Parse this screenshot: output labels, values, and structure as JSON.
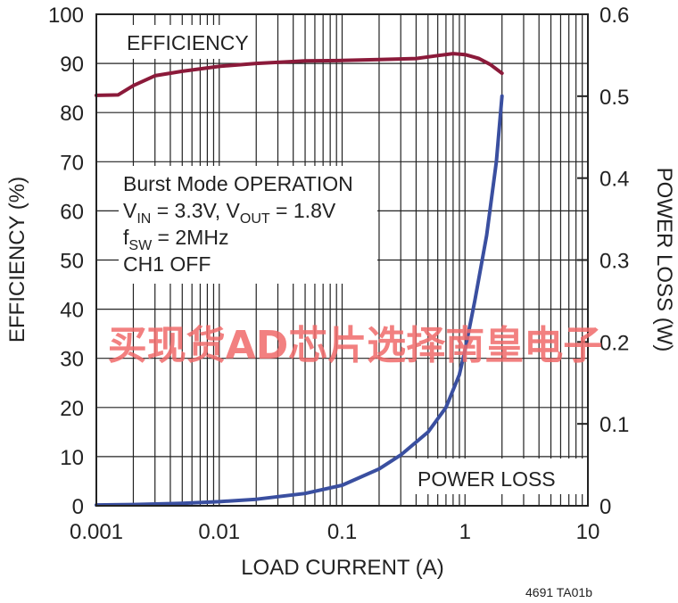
{
  "chart_data": {
    "type": "line",
    "x_scale": "log",
    "xlim": [
      0.001,
      10
    ],
    "ylim_left": [
      0,
      100
    ],
    "ylim_right": [
      0,
      0.6
    ],
    "x_ticks": [
      "0.001",
      "0.01",
      "0.1",
      "1",
      "10"
    ],
    "y_left_ticks": [
      "0",
      "10",
      "20",
      "30",
      "40",
      "50",
      "60",
      "70",
      "80",
      "90",
      "100"
    ],
    "y_right_ticks": [
      "0",
      "0.1",
      "0.2",
      "0.3",
      "0.4",
      "0.5",
      "0.6"
    ],
    "xlabel": "LOAD CURRENT (A)",
    "ylabel_left": "EFFICIENCY (%)",
    "ylabel_right": "POWER LOSS (W)",
    "grid": true,
    "series": [
      {
        "name": "EFFICIENCY",
        "axis": "left",
        "color": "#8b1a3a",
        "x": [
          0.001,
          0.0015,
          0.002,
          0.003,
          0.005,
          0.01,
          0.02,
          0.05,
          0.1,
          0.2,
          0.4,
          0.6,
          0.8,
          1.0,
          1.3,
          1.6,
          2.0
        ],
        "y": [
          83.5,
          83.6,
          85.5,
          87.5,
          88.4,
          89.4,
          90.0,
          90.5,
          90.6,
          90.8,
          91.0,
          91.6,
          92.0,
          91.8,
          91.0,
          89.8,
          88.0
        ]
      },
      {
        "name": "POWER LOSS",
        "axis": "right",
        "color": "#3a4fa0",
        "x": [
          0.001,
          0.002,
          0.005,
          0.01,
          0.02,
          0.05,
          0.1,
          0.2,
          0.3,
          0.5,
          0.7,
          0.9,
          1.0,
          1.2,
          1.5,
          1.8,
          2.0
        ],
        "y": [
          0.001,
          0.0015,
          0.003,
          0.005,
          0.008,
          0.015,
          0.025,
          0.045,
          0.062,
          0.09,
          0.12,
          0.16,
          0.19,
          0.25,
          0.33,
          0.42,
          0.5
        ]
      }
    ],
    "annotations": {
      "efficiency_label": "EFFICIENCY",
      "power_loss_label": "POWER LOSS",
      "conditions": {
        "line1": "Burst Mode OPERATION",
        "vin_main": "V",
        "vin_sub": "IN",
        "vin_rest": " = 3.3V, V",
        "vout_sub": "OUT",
        "vout_rest": " = 1.8V",
        "fsw_main": "f",
        "fsw_sub": "SW",
        "fsw_rest": " = 2MHz",
        "line4": "CH1 OFF"
      },
      "figure_code": "4691 TA01b"
    }
  },
  "watermark": "买现货AD芯片选择南皇电子"
}
